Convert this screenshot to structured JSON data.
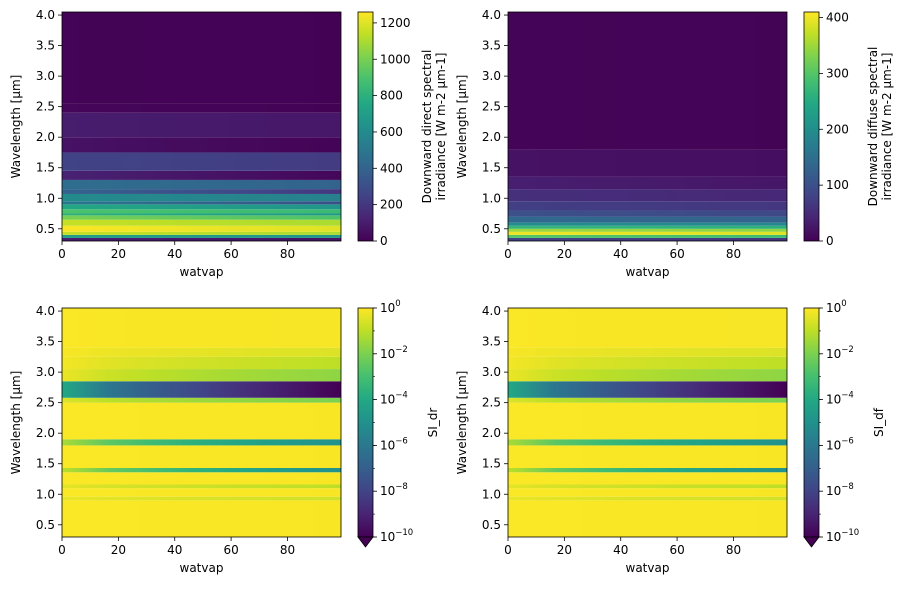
{
  "chart_data": [
    {
      "type": "heatmap",
      "title": "",
      "xlabel": "watvap",
      "ylabel": "Wavelength [µm]",
      "xlim": [
        0,
        99
      ],
      "ylim": [
        0.3,
        4.05
      ],
      "x_ticks": [
        0,
        20,
        40,
        60,
        80
      ],
      "x_tick_labels": [
        "0",
        "20",
        "40",
        "60",
        "80"
      ],
      "y_ticks": [
        0.5,
        1.0,
        1.5,
        2.0,
        2.5,
        3.0,
        3.5,
        4.0
      ],
      "y_tick_labels": [
        "0.5",
        "1.0",
        "1.5",
        "2.0",
        "2.5",
        "3.0",
        "3.5",
        "4.0"
      ],
      "colorscale": "viridis",
      "colorbar": {
        "label_lines": [
          "Downward direct spectral",
          "irradiance [W m-2 µm-1]"
        ],
        "scale": "linear",
        "range": [
          0,
          1260
        ],
        "ticks": [
          0,
          200,
          400,
          600,
          800,
          1000,
          1200
        ],
        "tick_labels": [
          "0",
          "200",
          "400",
          "600",
          "800",
          "1000",
          "1200"
        ]
      },
      "bands": [
        {
          "y0": 0.3,
          "y1": 0.35,
          "values_x0_x99": [
            100,
            60
          ]
        },
        {
          "y0": 0.35,
          "y1": 0.4,
          "values_x0_x99": [
            700,
            650
          ]
        },
        {
          "y0": 0.4,
          "y1": 0.45,
          "values_x0_x99": [
            1150,
            1100
          ]
        },
        {
          "y0": 0.45,
          "y1": 0.55,
          "values_x0_x99": [
            1250,
            1200
          ]
        },
        {
          "y0": 0.55,
          "y1": 0.65,
          "values_x0_x99": [
            1150,
            1100
          ]
        },
        {
          "y0": 0.65,
          "y1": 0.72,
          "values_x0_x99": [
            1000,
            900
          ]
        },
        {
          "y0": 0.72,
          "y1": 0.75,
          "values_x0_x99": [
            800,
            650
          ]
        },
        {
          "y0": 0.75,
          "y1": 0.82,
          "values_x0_x99": [
            900,
            850
          ]
        },
        {
          "y0": 0.82,
          "y1": 0.9,
          "values_x0_x99": [
            750,
            650
          ]
        },
        {
          "y0": 0.9,
          "y1": 0.95,
          "values_x0_x99": [
            500,
            300
          ]
        },
        {
          "y0": 0.95,
          "y1": 1.07,
          "values_x0_x99": [
            600,
            550
          ]
        },
        {
          "y0": 1.07,
          "y1": 1.15,
          "values_x0_x99": [
            400,
            200
          ]
        },
        {
          "y0": 1.15,
          "y1": 1.3,
          "values_x0_x99": [
            450,
            400
          ]
        },
        {
          "y0": 1.3,
          "y1": 1.45,
          "values_x0_x99": [
            120,
            20
          ]
        },
        {
          "y0": 1.45,
          "y1": 1.75,
          "values_x0_x99": [
            250,
            220
          ]
        },
        {
          "y0": 1.75,
          "y1": 2.0,
          "values_x0_x99": [
            60,
            10
          ]
        },
        {
          "y0": 2.0,
          "y1": 2.4,
          "values_x0_x99": [
            100,
            80
          ]
        },
        {
          "y0": 2.4,
          "y1": 2.55,
          "values_x0_x99": [
            20,
            5
          ]
        },
        {
          "y0": 2.55,
          "y1": 4.05,
          "values_x0_x99": [
            10,
            5
          ]
        }
      ]
    },
    {
      "type": "heatmap",
      "title": "",
      "xlabel": "watvap",
      "ylabel": "Wavelength [µm]",
      "xlim": [
        0,
        99
      ],
      "ylim": [
        0.3,
        4.05
      ],
      "x_ticks": [
        0,
        20,
        40,
        60,
        80
      ],
      "x_tick_labels": [
        "0",
        "20",
        "40",
        "60",
        "80"
      ],
      "y_ticks": [
        0.5,
        1.0,
        1.5,
        2.0,
        2.5,
        3.0,
        3.5,
        4.0
      ],
      "y_tick_labels": [
        "0.5",
        "1.0",
        "1.5",
        "2.0",
        "2.5",
        "3.0",
        "3.5",
        "4.0"
      ],
      "colorscale": "viridis",
      "colorbar": {
        "label_lines": [
          "Downward diffuse spectral",
          "irradiance [W m-2 µm-1]"
        ],
        "scale": "linear",
        "range": [
          0,
          410
        ],
        "ticks": [
          0,
          100,
          200,
          300,
          400
        ],
        "tick_labels": [
          "0",
          "100",
          "200",
          "300",
          "400"
        ]
      },
      "bands": [
        {
          "y0": 0.3,
          "y1": 0.35,
          "values_x0_x99": [
            80,
            60
          ]
        },
        {
          "y0": 0.35,
          "y1": 0.4,
          "values_x0_x99": [
            300,
            280
          ]
        },
        {
          "y0": 0.4,
          "y1": 0.45,
          "values_x0_x99": [
            400,
            390
          ]
        },
        {
          "y0": 0.45,
          "y1": 0.5,
          "values_x0_x99": [
            350,
            340
          ]
        },
        {
          "y0": 0.5,
          "y1": 0.55,
          "values_x0_x99": [
            270,
            260
          ]
        },
        {
          "y0": 0.55,
          "y1": 0.6,
          "values_x0_x99": [
            200,
            190
          ]
        },
        {
          "y0": 0.6,
          "y1": 0.7,
          "values_x0_x99": [
            140,
            130
          ]
        },
        {
          "y0": 0.7,
          "y1": 0.8,
          "values_x0_x99": [
            100,
            90
          ]
        },
        {
          "y0": 0.8,
          "y1": 0.95,
          "values_x0_x99": [
            75,
            65
          ]
        },
        {
          "y0": 0.95,
          "y1": 1.15,
          "values_x0_x99": [
            55,
            45
          ]
        },
        {
          "y0": 1.15,
          "y1": 1.35,
          "values_x0_x99": [
            35,
            25
          ]
        },
        {
          "y0": 1.35,
          "y1": 1.8,
          "values_x0_x99": [
            20,
            15
          ]
        },
        {
          "y0": 1.8,
          "y1": 4.05,
          "values_x0_x99": [
            5,
            3
          ]
        }
      ]
    },
    {
      "type": "heatmap",
      "title": "",
      "xlabel": "watvap",
      "ylabel": "Wavelength [µm]",
      "xlim": [
        0,
        99
      ],
      "ylim": [
        0.3,
        4.05
      ],
      "x_ticks": [
        0,
        20,
        40,
        60,
        80
      ],
      "x_tick_labels": [
        "0",
        "20",
        "40",
        "60",
        "80"
      ],
      "y_ticks": [
        0.5,
        1.0,
        1.5,
        2.0,
        2.5,
        3.0,
        3.5,
        4.0
      ],
      "y_tick_labels": [
        "0.5",
        "1.0",
        "1.5",
        "2.0",
        "2.5",
        "3.0",
        "3.5",
        "4.0"
      ],
      "colorscale": "viridis",
      "colorbar": {
        "label": "SI_dr",
        "scale": "log",
        "range": [
          1e-10,
          1
        ],
        "extend": "min",
        "tick_exponents": [
          0,
          -2,
          -4,
          -6,
          -8,
          -10
        ],
        "tick_base": "10"
      },
      "bands": [
        {
          "y0": 0.3,
          "y1": 0.9,
          "values_x0_x99": [
            0.9,
            0.85
          ]
        },
        {
          "y0": 0.9,
          "y1": 0.96,
          "values_x0_x99": [
            0.5,
            0.2
          ]
        },
        {
          "y0": 0.96,
          "y1": 1.1,
          "values_x0_x99": [
            0.9,
            0.85
          ]
        },
        {
          "y0": 1.1,
          "y1": 1.16,
          "values_x0_x99": [
            0.4,
            0.1
          ]
        },
        {
          "y0": 1.16,
          "y1": 1.36,
          "values_x0_x99": [
            0.9,
            0.85
          ]
        },
        {
          "y0": 1.36,
          "y1": 1.43,
          "values_x0_x99": [
            0.1,
            1e-05
          ]
        },
        {
          "y0": 1.43,
          "y1": 1.8,
          "values_x0_x99": [
            0.9,
            0.85
          ]
        },
        {
          "y0": 1.8,
          "y1": 1.9,
          "values_x0_x99": [
            0.05,
            1e-05
          ]
        },
        {
          "y0": 1.9,
          "y1": 2.5,
          "values_x0_x99": [
            0.9,
            0.85
          ]
        },
        {
          "y0": 2.5,
          "y1": 2.58,
          "values_x0_x99": [
            0.3,
            0.01
          ]
        },
        {
          "y0": 2.58,
          "y1": 2.85,
          "values_x0_x99": [
            0.0001,
            1e-10
          ]
        },
        {
          "y0": 2.85,
          "y1": 3.05,
          "values_x0_x99": [
            0.5,
            0.02
          ]
        },
        {
          "y0": 3.05,
          "y1": 3.25,
          "values_x0_x99": [
            0.7,
            0.1
          ]
        },
        {
          "y0": 3.25,
          "y1": 3.4,
          "values_x0_x99": [
            0.8,
            0.3
          ]
        },
        {
          "y0": 3.4,
          "y1": 4.05,
          "values_x0_x99": [
            0.9,
            0.8
          ]
        }
      ]
    },
    {
      "type": "heatmap",
      "title": "",
      "xlabel": "watvap",
      "ylabel": "Wavelength [µm]",
      "xlim": [
        0,
        99
      ],
      "ylim": [
        0.3,
        4.05
      ],
      "x_ticks": [
        0,
        20,
        40,
        60,
        80
      ],
      "x_tick_labels": [
        "0",
        "20",
        "40",
        "60",
        "80"
      ],
      "y_ticks": [
        0.5,
        1.0,
        1.5,
        2.0,
        2.5,
        3.0,
        3.5,
        4.0
      ],
      "y_tick_labels": [
        "0.5",
        "1.0",
        "1.5",
        "2.0",
        "2.5",
        "3.0",
        "3.5",
        "4.0"
      ],
      "colorscale": "viridis",
      "colorbar": {
        "label": "SI_df",
        "scale": "log",
        "range": [
          1e-10,
          1
        ],
        "extend": "min",
        "tick_exponents": [
          0,
          -2,
          -4,
          -6,
          -8,
          -10
        ],
        "tick_base": "10"
      },
      "bands": [
        {
          "y0": 0.3,
          "y1": 0.9,
          "values_x0_x99": [
            0.9,
            0.85
          ]
        },
        {
          "y0": 0.9,
          "y1": 0.96,
          "values_x0_x99": [
            0.5,
            0.2
          ]
        },
        {
          "y0": 0.96,
          "y1": 1.1,
          "values_x0_x99": [
            0.9,
            0.85
          ]
        },
        {
          "y0": 1.1,
          "y1": 1.16,
          "values_x0_x99": [
            0.4,
            0.1
          ]
        },
        {
          "y0": 1.16,
          "y1": 1.36,
          "values_x0_x99": [
            0.9,
            0.85
          ]
        },
        {
          "y0": 1.36,
          "y1": 1.43,
          "values_x0_x99": [
            0.1,
            1e-05
          ]
        },
        {
          "y0": 1.43,
          "y1": 1.8,
          "values_x0_x99": [
            0.9,
            0.85
          ]
        },
        {
          "y0": 1.8,
          "y1": 1.9,
          "values_x0_x99": [
            0.05,
            1e-05
          ]
        },
        {
          "y0": 1.9,
          "y1": 2.5,
          "values_x0_x99": [
            0.9,
            0.85
          ]
        },
        {
          "y0": 2.5,
          "y1": 2.58,
          "values_x0_x99": [
            0.3,
            0.01
          ]
        },
        {
          "y0": 2.58,
          "y1": 2.85,
          "values_x0_x99": [
            0.0001,
            1e-10
          ]
        },
        {
          "y0": 2.85,
          "y1": 3.05,
          "values_x0_x99": [
            0.5,
            0.02
          ]
        },
        {
          "y0": 3.05,
          "y1": 3.25,
          "values_x0_x99": [
            0.7,
            0.1
          ]
        },
        {
          "y0": 3.25,
          "y1": 3.4,
          "values_x0_x99": [
            0.8,
            0.3
          ]
        },
        {
          "y0": 3.4,
          "y1": 4.05,
          "values_x0_x99": [
            0.9,
            0.8
          ]
        }
      ]
    }
  ]
}
